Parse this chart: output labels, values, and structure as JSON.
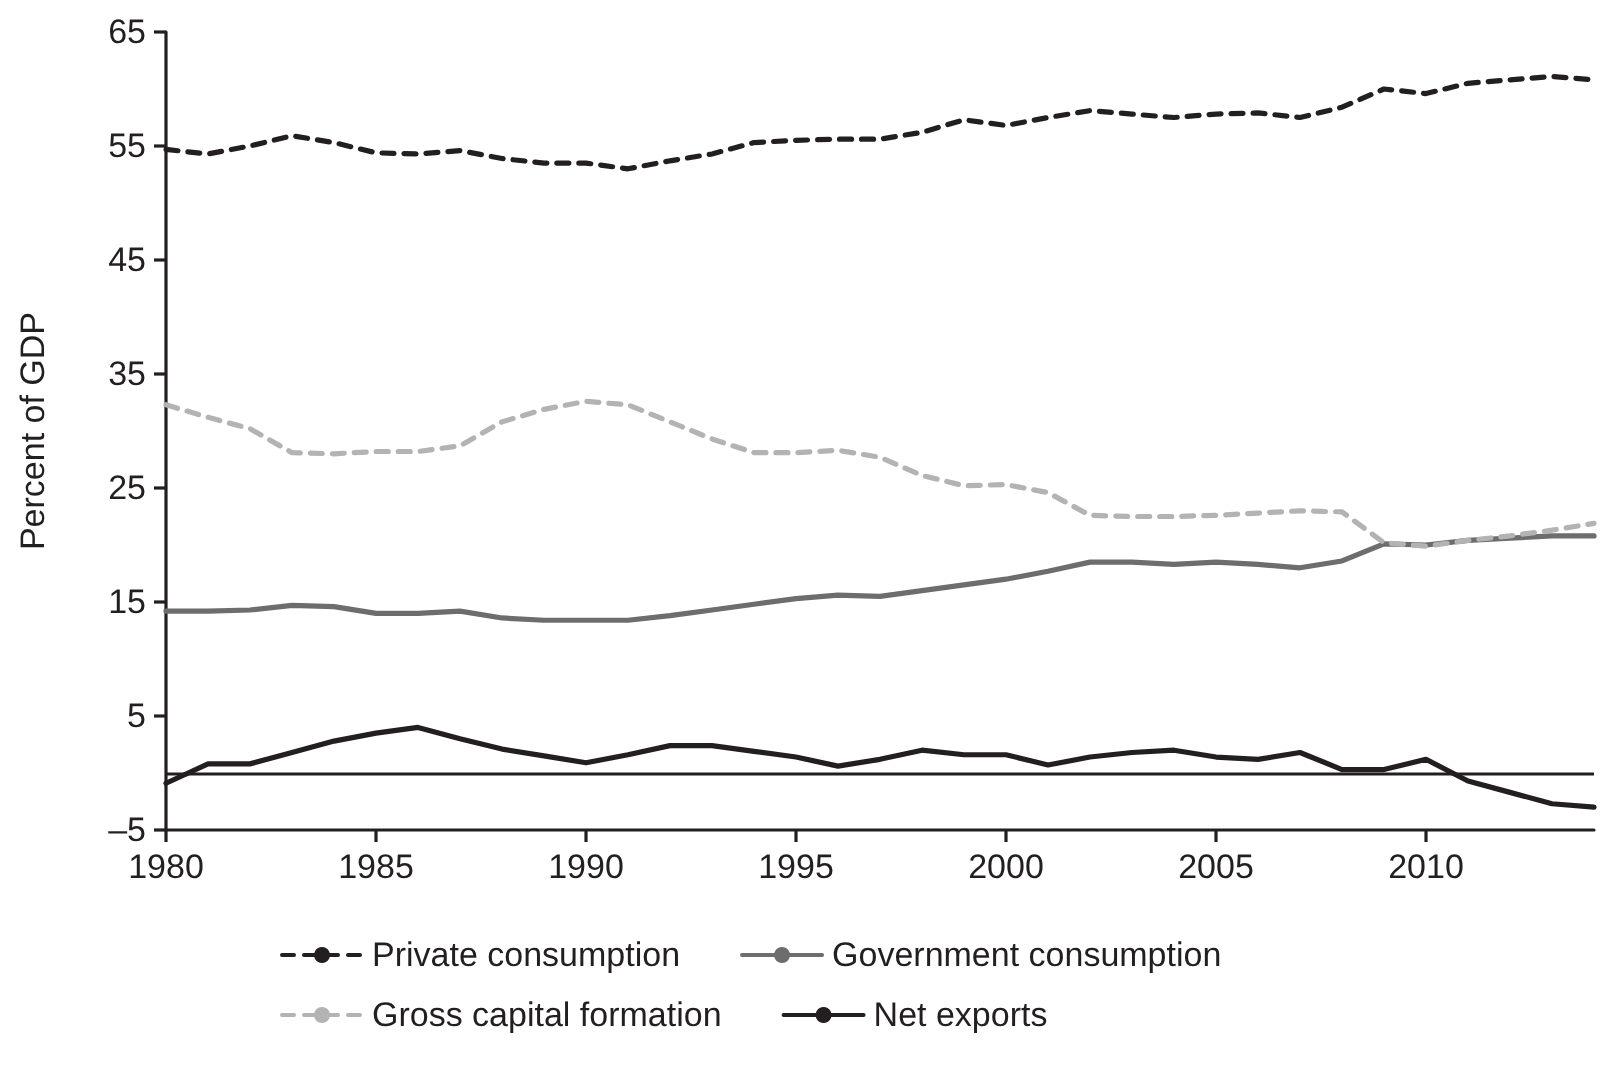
{
  "chart_data": {
    "type": "line",
    "ylabel": "Percent of GDP",
    "x": [
      1980,
      1981,
      1982,
      1983,
      1984,
      1985,
      1986,
      1987,
      1988,
      1989,
      1990,
      1991,
      1992,
      1993,
      1994,
      1995,
      1996,
      1997,
      1998,
      1999,
      2000,
      2001,
      2002,
      2003,
      2004,
      2005,
      2006,
      2007,
      2008,
      2009,
      2010,
      2011,
      2012,
      2013,
      2014
    ],
    "xlim": [
      1980,
      2014
    ],
    "xticks": [
      1980,
      1985,
      1990,
      1995,
      2000,
      2005,
      2010
    ],
    "ylim": [
      -5,
      65
    ],
    "yticks": [
      {
        "value": -5,
        "label": "–5"
      },
      5,
      15,
      25,
      35,
      45,
      55,
      65
    ],
    "grid": false,
    "legend": "bottom",
    "marker": "none",
    "series": [
      {
        "name": "Private consumption",
        "color": "#231f20",
        "line_style": "dashed",
        "values": [
          54.7,
          54.3,
          55.0,
          55.9,
          55.3,
          54.4,
          54.3,
          54.6,
          53.9,
          53.5,
          53.5,
          53.0,
          53.7,
          54.3,
          55.3,
          55.5,
          55.6,
          55.6,
          56.2,
          57.3,
          56.8,
          57.5,
          58.1,
          57.8,
          57.5,
          57.8,
          57.9,
          57.5,
          58.4,
          60.0,
          59.6,
          60.5,
          60.8,
          61.1,
          60.8
        ]
      },
      {
        "name": "Government consumption",
        "color": "#6d6d6d",
        "line_style": "solid",
        "values": [
          14.2,
          14.2,
          14.3,
          14.7,
          14.6,
          14.0,
          14.0,
          14.2,
          13.6,
          13.4,
          13.4,
          13.4,
          13.8,
          14.3,
          14.8,
          15.3,
          15.6,
          15.5,
          16.0,
          16.5,
          17.0,
          17.7,
          18.5,
          18.5,
          18.3,
          18.5,
          18.3,
          18.0,
          18.6,
          20.1,
          20.0,
          20.4,
          20.6,
          20.8,
          20.8
        ]
      },
      {
        "name": "Gross capital formation",
        "color": "#b3b3b3",
        "line_style": "dashed",
        "values": [
          32.3,
          31.2,
          30.2,
          28.1,
          28.0,
          28.2,
          28.2,
          28.7,
          30.8,
          31.9,
          32.6,
          32.3,
          30.8,
          29.3,
          28.1,
          28.1,
          28.3,
          27.7,
          26.1,
          25.2,
          25.3,
          24.6,
          22.6,
          22.5,
          22.5,
          22.6,
          22.8,
          23.0,
          22.9,
          20.2,
          19.9,
          20.4,
          20.8,
          21.3,
          21.9
        ]
      },
      {
        "name": "Net exports",
        "color": "#231f20",
        "line_style": "solid",
        "values": [
          -0.9,
          0.8,
          0.8,
          1.8,
          2.8,
          3.5,
          4.0,
          3.0,
          2.1,
          1.5,
          0.9,
          1.6,
          2.4,
          2.4,
          1.9,
          1.4,
          0.6,
          1.2,
          2.0,
          1.6,
          1.6,
          0.7,
          1.4,
          1.8,
          2.0,
          1.4,
          1.2,
          1.8,
          0.3,
          0.3,
          1.2,
          -0.7,
          -1.7,
          -2.7,
          -3.0
        ]
      }
    ],
    "ref_lines": [
      {
        "axis": "y",
        "value": 0,
        "color": "#231f20",
        "line_style": "solid"
      }
    ]
  }
}
